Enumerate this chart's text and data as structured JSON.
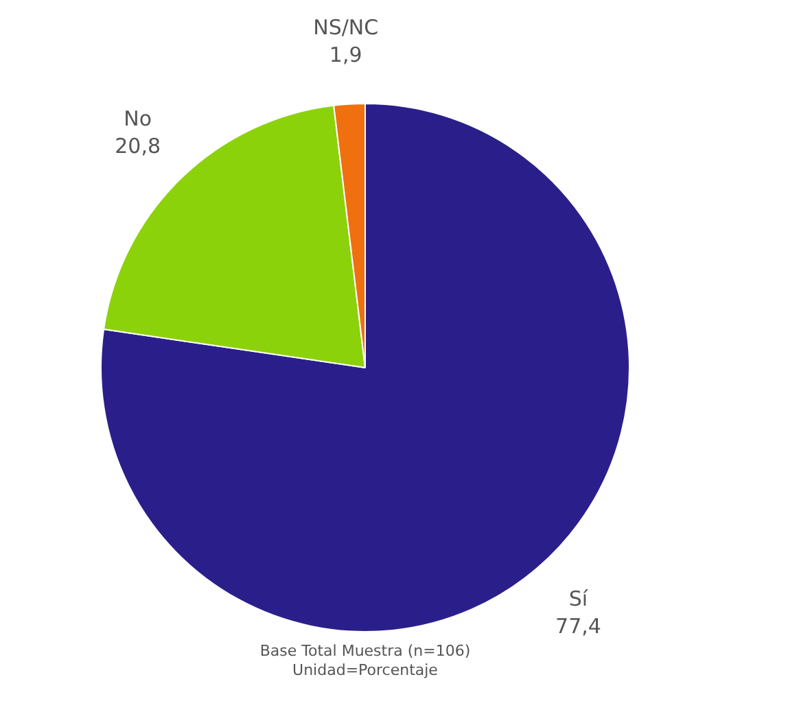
{
  "chart_data": {
    "type": "pie",
    "categories": [
      "Sí",
      "No",
      "NS/NC"
    ],
    "values": [
      77.4,
      20.8,
      1.9
    ],
    "value_labels": [
      "77,4",
      "20,8",
      "1,9"
    ],
    "colors": [
      "#2a1f8a",
      "#8cd20a",
      "#f0700f"
    ],
    "legend": false,
    "annotations": [
      "Base Total Muestra (n=106)",
      "Unidad=Porcentaje"
    ]
  }
}
